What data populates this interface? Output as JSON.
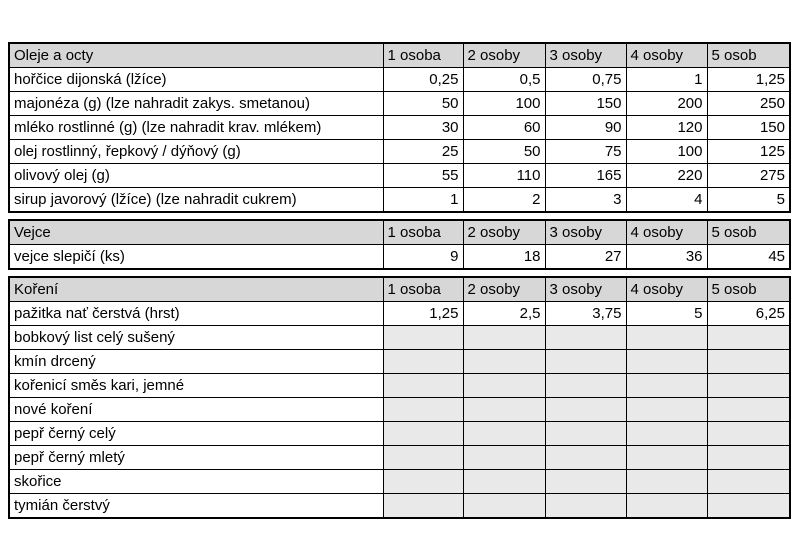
{
  "columns": [
    "1 osoba",
    "2 osoby",
    "3 osoby",
    "4 osoby",
    "5 osob"
  ],
  "sections": [
    {
      "id": "oleje-a-octy",
      "title": "Oleje a octy",
      "rows": [
        {
          "label": "hořčice dijonská (lžíce)",
          "values": [
            "0,25",
            "0,5",
            "0,75",
            "1",
            "1,25"
          ]
        },
        {
          "label": "majonéza (g) (lze nahradit zakys. smetanou)",
          "values": [
            "50",
            "100",
            "150",
            "200",
            "250"
          ]
        },
        {
          "label": "mléko rostlinné (g) (lze nahradit krav. mlékem)",
          "values": [
            "30",
            "60",
            "90",
            "120",
            "150"
          ]
        },
        {
          "label": "olej rostlinný, řepkový / dýňový (g)",
          "values": [
            "25",
            "50",
            "75",
            "100",
            "125"
          ]
        },
        {
          "label": "olivový olej (g)",
          "values": [
            "55",
            "110",
            "165",
            "220",
            "275"
          ]
        },
        {
          "label": "sirup javorový (lžíce) (lze nahradit cukrem)",
          "values": [
            "1",
            "2",
            "3",
            "4",
            "5"
          ]
        }
      ]
    },
    {
      "id": "vejce",
      "title": "Vejce",
      "rows": [
        {
          "label": "vejce slepičí (ks)",
          "values": [
            "9",
            "18",
            "27",
            "36",
            "45"
          ]
        }
      ]
    },
    {
      "id": "koreni",
      "title": "Koření",
      "rows": [
        {
          "label": "pažitka nať čerstvá (hrst)",
          "values": [
            "1,25",
            "2,5",
            "3,75",
            "5",
            "6,25"
          ]
        },
        {
          "label": "bobkový list celý sušený",
          "values": [
            "",
            "",
            "",
            "",
            ""
          ]
        },
        {
          "label": "kmín drcený",
          "values": [
            "",
            "",
            "",
            "",
            ""
          ]
        },
        {
          "label": "kořenicí směs kari, jemné",
          "values": [
            "",
            "",
            "",
            "",
            ""
          ]
        },
        {
          "label": "nové koření",
          "values": [
            "",
            "",
            "",
            "",
            ""
          ]
        },
        {
          "label": "pepř černý celý",
          "values": [
            "",
            "",
            "",
            "",
            ""
          ]
        },
        {
          "label": "pepř černý mletý",
          "values": [
            "",
            "",
            "",
            "",
            ""
          ]
        },
        {
          "label": "skořice",
          "values": [
            "",
            "",
            "",
            "",
            ""
          ]
        },
        {
          "label": "tymián čerstvý",
          "values": [
            "",
            "",
            "",
            "",
            ""
          ]
        }
      ]
    }
  ],
  "colors": {
    "header_bg": "#d7d7d7",
    "empty_cell_bg": "#e9e9e9",
    "border": "#000000",
    "cell_bg": "#ffffff",
    "text": "#000000"
  }
}
